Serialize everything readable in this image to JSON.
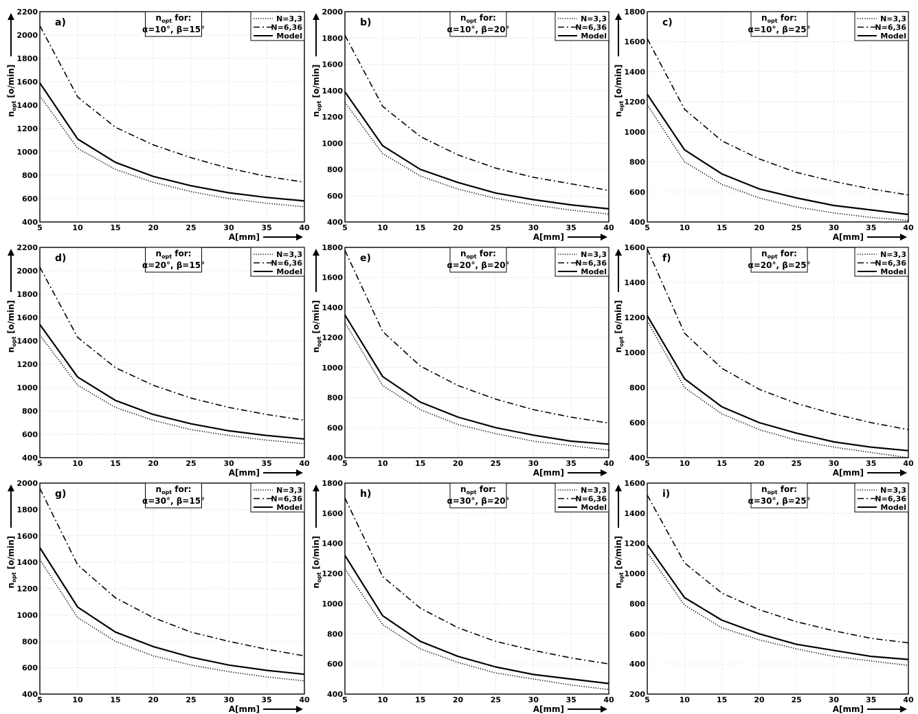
{
  "chart_data": [
    {
      "type": "line",
      "letter": "a)",
      "annotation": {
        "line1_main": "n",
        "line1_sub": "opt",
        "line1_rest": " for:",
        "alpha": "α=10°",
        "beta": "β=15°"
      },
      "xlabel": "A[mm]",
      "ylabel_main": "n",
      "ylabel_sub": "opt",
      "ylabel_rest": " [o/min]",
      "xlim": [
        5,
        40
      ],
      "ylim": [
        400,
        2200
      ],
      "xticks": [
        5,
        10,
        15,
        20,
        25,
        30,
        35,
        40
      ],
      "yticks": [
        400,
        600,
        800,
        1000,
        1200,
        1400,
        1600,
        1800,
        2000,
        2200
      ],
      "legend": [
        "N=3,3",
        "N=6,36",
        "Model"
      ],
      "series": [
        {
          "name": "N=3,3",
          "style": "dotted",
          "x": [
            5,
            10,
            15,
            20,
            25,
            30,
            35,
            40
          ],
          "y": [
            1480,
            1030,
            850,
            740,
            660,
            600,
            560,
            530
          ]
        },
        {
          "name": "N=6,36",
          "style": "dashdot",
          "x": [
            5,
            10,
            15,
            20,
            25,
            30,
            35,
            40
          ],
          "y": [
            2080,
            1470,
            1210,
            1060,
            950,
            860,
            790,
            740
          ]
        },
        {
          "name": "Model",
          "style": "solid",
          "x": [
            5,
            10,
            15,
            20,
            25,
            30,
            35,
            40
          ],
          "y": [
            1590,
            1110,
            910,
            790,
            710,
            650,
            610,
            580
          ]
        }
      ]
    },
    {
      "type": "line",
      "letter": "b)",
      "annotation": {
        "line1_main": "n",
        "line1_sub": "opt",
        "line1_rest": " for:",
        "alpha": "α=10°",
        "beta": "β=20°"
      },
      "xlabel": "A[mm]",
      "ylabel_main": "n",
      "ylabel_sub": "opt",
      "ylabel_rest": " [o/min]",
      "xlim": [
        5,
        40
      ],
      "ylim": [
        400,
        2000
      ],
      "xticks": [
        5,
        10,
        15,
        20,
        25,
        30,
        35,
        40
      ],
      "yticks": [
        400,
        600,
        800,
        1000,
        1200,
        1400,
        1600,
        1800,
        2000
      ],
      "legend": [
        "N=3,3",
        "N=6,36",
        "Model"
      ],
      "series": [
        {
          "name": "N=3,3",
          "style": "dotted",
          "x": [
            5,
            10,
            15,
            20,
            25,
            30,
            35,
            40
          ],
          "y": [
            1310,
            920,
            750,
            650,
            580,
            530,
            490,
            460
          ]
        },
        {
          "name": "N=6,36",
          "style": "dashdot",
          "x": [
            5,
            10,
            15,
            20,
            25,
            30,
            35,
            40
          ],
          "y": [
            1820,
            1280,
            1050,
            910,
            810,
            740,
            690,
            640
          ]
        },
        {
          "name": "Model",
          "style": "solid",
          "x": [
            5,
            10,
            15,
            20,
            25,
            30,
            35,
            40
          ],
          "y": [
            1390,
            980,
            800,
            700,
            620,
            570,
            530,
            500
          ]
        }
      ]
    },
    {
      "type": "line",
      "letter": "c)",
      "annotation": {
        "line1_main": "n",
        "line1_sub": "opt",
        "line1_rest": " for:",
        "alpha": "α=10°",
        "beta": "β=25°"
      },
      "xlabel": "A[mm]",
      "ylabel_main": "n",
      "ylabel_sub": "opt",
      "ylabel_rest": " [o/min]",
      "xlim": [
        5,
        40
      ],
      "ylim": [
        400,
        1800
      ],
      "xticks": [
        5,
        10,
        15,
        20,
        25,
        30,
        35,
        40
      ],
      "yticks": [
        400,
        600,
        800,
        1000,
        1200,
        1400,
        1600,
        1800
      ],
      "legend": [
        "N=3,3",
        "N=6,36",
        "Model"
      ],
      "series": [
        {
          "name": "N=3,3",
          "style": "dotted",
          "x": [
            5,
            10,
            15,
            20,
            25,
            30,
            35,
            40
          ],
          "y": [
            1180,
            800,
            650,
            560,
            500,
            460,
            430,
            410
          ]
        },
        {
          "name": "N=6,36",
          "style": "dashdot",
          "x": [
            5,
            10,
            15,
            20,
            25,
            30,
            35,
            40
          ],
          "y": [
            1620,
            1150,
            940,
            820,
            730,
            670,
            620,
            580
          ]
        },
        {
          "name": "Model",
          "style": "solid",
          "x": [
            5,
            10,
            15,
            20,
            25,
            30,
            35,
            40
          ],
          "y": [
            1250,
            880,
            720,
            620,
            560,
            510,
            480,
            450
          ]
        }
      ]
    },
    {
      "type": "line",
      "letter": "d)",
      "annotation": {
        "line1_main": "n",
        "line1_sub": "opt",
        "line1_rest": " for:",
        "alpha": "α=20°",
        "beta": "β=15°"
      },
      "xlabel": "A[mm]",
      "ylabel_main": "n",
      "ylabel_sub": "opt",
      "ylabel_rest": " [o/min]",
      "xlim": [
        5,
        40
      ],
      "ylim": [
        400,
        2200
      ],
      "xticks": [
        5,
        10,
        15,
        20,
        25,
        30,
        35,
        40
      ],
      "yticks": [
        400,
        600,
        800,
        1000,
        1200,
        1400,
        1600,
        1800,
        2000,
        2200
      ],
      "legend": [
        "N=3,3",
        "N=6,36",
        "Model"
      ],
      "series": [
        {
          "name": "N=3,3",
          "style": "dotted",
          "x": [
            5,
            10,
            15,
            20,
            25,
            30,
            35,
            40
          ],
          "y": [
            1450,
            1020,
            830,
            720,
            640,
            590,
            550,
            520
          ]
        },
        {
          "name": "N=6,36",
          "style": "dashdot",
          "x": [
            5,
            10,
            15,
            20,
            25,
            30,
            35,
            40
          ],
          "y": [
            2030,
            1430,
            1170,
            1020,
            910,
            830,
            770,
            720
          ]
        },
        {
          "name": "Model",
          "style": "solid",
          "x": [
            5,
            10,
            15,
            20,
            25,
            30,
            35,
            40
          ],
          "y": [
            1540,
            1090,
            890,
            770,
            690,
            630,
            590,
            560
          ]
        }
      ]
    },
    {
      "type": "line",
      "letter": "e)",
      "annotation": {
        "line1_main": "n",
        "line1_sub": "opt",
        "line1_rest": " for:",
        "alpha": "α=20°",
        "beta": "β=20°"
      },
      "xlabel": "A[mm]",
      "ylabel_main": "n",
      "ylabel_sub": "opt",
      "ylabel_rest": " [o/min]",
      "xlim": [
        5,
        40
      ],
      "ylim": [
        400,
        1800
      ],
      "xticks": [
        5,
        10,
        15,
        20,
        25,
        30,
        35,
        40
      ],
      "yticks": [
        400,
        600,
        800,
        1000,
        1200,
        1400,
        1600,
        1800
      ],
      "legend": [
        "N=3,3",
        "N=6,36",
        "Model"
      ],
      "series": [
        {
          "name": "N=3,3",
          "style": "dotted",
          "x": [
            5,
            10,
            15,
            20,
            25,
            30,
            35,
            40
          ],
          "y": [
            1300,
            880,
            720,
            620,
            560,
            510,
            480,
            450
          ]
        },
        {
          "name": "N=6,36",
          "style": "dashdot",
          "x": [
            5,
            10,
            15,
            20,
            25,
            30,
            35,
            40
          ],
          "y": [
            1780,
            1240,
            1010,
            880,
            790,
            720,
            670,
            630
          ]
        },
        {
          "name": "Model",
          "style": "solid",
          "x": [
            5,
            10,
            15,
            20,
            25,
            30,
            35,
            40
          ],
          "y": [
            1350,
            940,
            770,
            670,
            600,
            550,
            510,
            490
          ]
        }
      ]
    },
    {
      "type": "line",
      "letter": "f)",
      "annotation": {
        "line1_main": "n",
        "line1_sub": "opt",
        "line1_rest": " for:",
        "alpha": "α=20°",
        "beta": "β=25°"
      },
      "xlabel": "A[mm]",
      "ylabel_main": "n",
      "ylabel_sub": "opt",
      "ylabel_rest": " [o/min]",
      "xlim": [
        5,
        40
      ],
      "ylim": [
        400,
        1600
      ],
      "xticks": [
        5,
        10,
        15,
        20,
        25,
        30,
        35,
        40
      ],
      "yticks": [
        400,
        600,
        800,
        1000,
        1200,
        1400,
        1600
      ],
      "legend": [
        "N=3,3",
        "N=6,36",
        "Model"
      ],
      "series": [
        {
          "name": "N=3,3",
          "style": "dotted",
          "x": [
            5,
            10,
            15,
            20,
            25,
            30,
            35,
            40
          ],
          "y": [
            1180,
            800,
            650,
            560,
            500,
            460,
            430,
            400
          ]
        },
        {
          "name": "N=6,36",
          "style": "dashdot",
          "x": [
            5,
            10,
            15,
            20,
            25,
            30,
            35,
            40
          ],
          "y": [
            1590,
            1110,
            910,
            790,
            710,
            650,
            600,
            560
          ]
        },
        {
          "name": "Model",
          "style": "solid",
          "x": [
            5,
            10,
            15,
            20,
            25,
            30,
            35,
            40
          ],
          "y": [
            1210,
            850,
            690,
            600,
            540,
            490,
            460,
            440
          ]
        }
      ]
    },
    {
      "type": "line",
      "letter": "g)",
      "annotation": {
        "line1_main": "n",
        "line1_sub": "opt",
        "line1_rest": " for:",
        "alpha": "α=30°",
        "beta": "β=15°"
      },
      "xlabel": "A[mm]",
      "ylabel_main": "n",
      "ylabel_sub": "opt",
      "ylabel_rest": " [o/min]",
      "xlim": [
        5,
        40
      ],
      "ylim": [
        400,
        2000
      ],
      "xticks": [
        5,
        10,
        15,
        20,
        25,
        30,
        35,
        40
      ],
      "yticks": [
        400,
        600,
        800,
        1000,
        1200,
        1400,
        1600,
        1800,
        2000
      ],
      "legend": [
        "N=3,3",
        "N=6,36",
        "Model"
      ],
      "series": [
        {
          "name": "N=3,3",
          "style": "dotted",
          "x": [
            5,
            10,
            15,
            20,
            25,
            30,
            35,
            40
          ],
          "y": [
            1420,
            980,
            800,
            690,
            620,
            570,
            530,
            500
          ]
        },
        {
          "name": "N=6,36",
          "style": "dashdot",
          "x": [
            5,
            10,
            15,
            20,
            25,
            30,
            35,
            40
          ],
          "y": [
            1960,
            1380,
            1130,
            980,
            870,
            800,
            740,
            690
          ]
        },
        {
          "name": "Model",
          "style": "solid",
          "x": [
            5,
            10,
            15,
            20,
            25,
            30,
            35,
            40
          ],
          "y": [
            1510,
            1060,
            870,
            760,
            680,
            620,
            580,
            550
          ]
        }
      ]
    },
    {
      "type": "line",
      "letter": "h)",
      "annotation": {
        "line1_main": "n",
        "line1_sub": "opt",
        "line1_rest": " for:",
        "alpha": "α=30°",
        "beta": "β=20°"
      },
      "xlabel": "A[mm]",
      "ylabel_main": "n",
      "ylabel_sub": "opt",
      "ylabel_rest": " [o/min]",
      "xlim": [
        5,
        40
      ],
      "ylim": [
        400,
        1800
      ],
      "xticks": [
        5,
        10,
        15,
        20,
        25,
        30,
        35,
        40
      ],
      "yticks": [
        400,
        600,
        800,
        1000,
        1200,
        1400,
        1600,
        1800
      ],
      "legend": [
        "N=3,3",
        "N=6,36",
        "Model"
      ],
      "series": [
        {
          "name": "N=3,3",
          "style": "dotted",
          "x": [
            5,
            10,
            15,
            20,
            25,
            30,
            35,
            40
          ],
          "y": [
            1230,
            860,
            700,
            610,
            540,
            500,
            460,
            430
          ]
        },
        {
          "name": "N=6,36",
          "style": "dashdot",
          "x": [
            5,
            10,
            15,
            20,
            25,
            30,
            35,
            40
          ],
          "y": [
            1700,
            1180,
            970,
            840,
            750,
            690,
            640,
            600
          ]
        },
        {
          "name": "Model",
          "style": "solid",
          "x": [
            5,
            10,
            15,
            20,
            25,
            30,
            35,
            40
          ],
          "y": [
            1320,
            920,
            750,
            650,
            580,
            530,
            500,
            470
          ]
        }
      ]
    },
    {
      "type": "line",
      "letter": "i)",
      "annotation": {
        "line1_main": "n",
        "line1_sub": "opt",
        "line1_rest": " for:",
        "alpha": "α=30°",
        "beta": "β=25°"
      },
      "xlabel": "A[mm]",
      "ylabel_main": "n",
      "ylabel_sub": "opt",
      "ylabel_rest": " [o/min]",
      "xlim": [
        5,
        40
      ],
      "ylim": [
        200,
        1600
      ],
      "xticks": [
        5,
        10,
        15,
        20,
        25,
        30,
        35,
        40
      ],
      "yticks": [
        200,
        400,
        600,
        800,
        1000,
        1200,
        1400,
        1600
      ],
      "legend": [
        "N=3,3",
        "N=6,36",
        "Model"
      ],
      "series": [
        {
          "name": "N=3,3",
          "style": "dotted",
          "x": [
            5,
            10,
            15,
            20,
            25,
            30,
            35,
            40
          ],
          "y": [
            1140,
            790,
            640,
            560,
            500,
            450,
            420,
            390
          ]
        },
        {
          "name": "N=6,36",
          "style": "dashdot",
          "x": [
            5,
            10,
            15,
            20,
            25,
            30,
            35,
            40
          ],
          "y": [
            1520,
            1070,
            870,
            760,
            680,
            620,
            570,
            540
          ]
        },
        {
          "name": "Model",
          "style": "solid",
          "x": [
            5,
            10,
            15,
            20,
            25,
            30,
            35,
            40
          ],
          "y": [
            1190,
            840,
            690,
            600,
            530,
            490,
            450,
            430
          ]
        }
      ]
    }
  ]
}
